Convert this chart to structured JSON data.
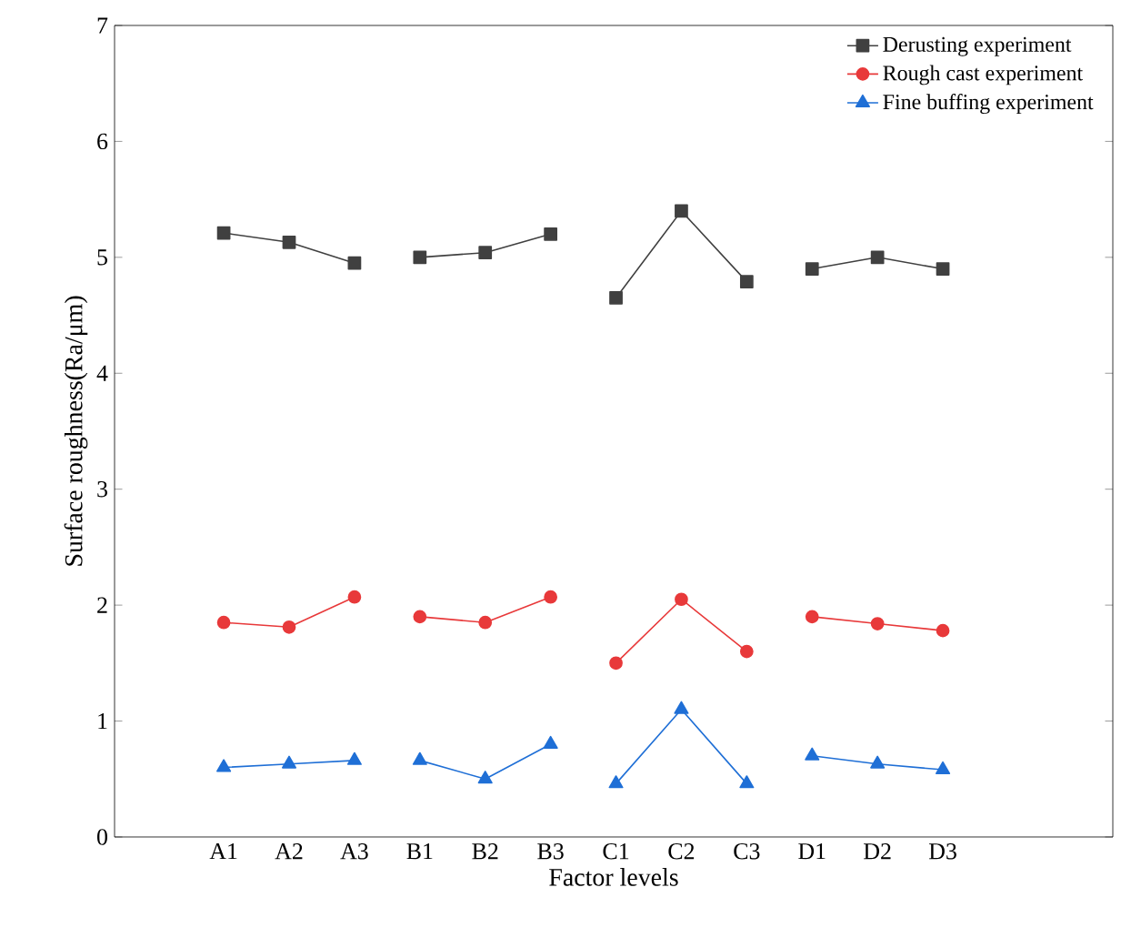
{
  "chart_data": {
    "type": "line",
    "xlabel": "Factor levels",
    "ylabel": "Surface roughness(Ra/μm)",
    "categories": [
      "A1",
      "A2",
      "A3",
      "B1",
      "B2",
      "B3",
      "C1",
      "C2",
      "C3",
      "D1",
      "D2",
      "D3"
    ],
    "ylim": [
      0,
      7
    ],
    "yticks": [
      0,
      1,
      2,
      3,
      4,
      5,
      6,
      7
    ],
    "legend": "top right",
    "grid": false,
    "series": [
      {
        "name": "Derusting experiment",
        "color": "#404040",
        "marker": "square",
        "values": [
          5.21,
          5.13,
          4.95,
          null,
          null,
          null,
          null,
          null,
          null,
          null,
          null,
          null
        ]
      },
      {
        "color": "#404040",
        "marker": "square",
        "values": [
          null,
          null,
          null,
          5.0,
          5.04,
          5.2,
          null,
          null,
          null,
          null,
          null,
          null
        ]
      },
      {
        "color": "#404040",
        "marker": "square",
        "values": [
          null,
          null,
          null,
          null,
          null,
          null,
          4.65,
          5.4,
          4.79,
          null,
          null,
          null
        ]
      },
      {
        "color": "#404040",
        "marker": "square",
        "values": [
          null,
          null,
          null,
          null,
          null,
          null,
          null,
          null,
          null,
          4.9,
          5.0,
          4.9
        ]
      },
      {
        "name": "Rough cast experiment",
        "color": "#e8393a",
        "marker": "circle",
        "values": [
          1.85,
          1.81,
          2.07,
          null,
          null,
          null,
          null,
          null,
          null,
          null,
          null,
          null
        ]
      },
      {
        "color": "#e8393a",
        "marker": "circle",
        "values": [
          null,
          null,
          null,
          1.9,
          1.85,
          2.07,
          null,
          null,
          null,
          null,
          null,
          null
        ]
      },
      {
        "color": "#e8393a",
        "marker": "circle",
        "values": [
          null,
          null,
          null,
          null,
          null,
          null,
          1.5,
          2.05,
          1.6,
          null,
          null,
          null
        ]
      },
      {
        "color": "#e8393a",
        "marker": "circle",
        "values": [
          null,
          null,
          null,
          null,
          null,
          null,
          null,
          null,
          null,
          1.9,
          1.84,
          1.78
        ]
      },
      {
        "name": "Fine buffing experiment",
        "color": "#1f6fd6",
        "marker": "triangle",
        "values": [
          0.6,
          0.63,
          0.66,
          null,
          null,
          null,
          null,
          null,
          null,
          null,
          null,
          null
        ]
      },
      {
        "color": "#1f6fd6",
        "marker": "triangle",
        "values": [
          null,
          null,
          null,
          0.66,
          0.5,
          0.8,
          null,
          null,
          null,
          null,
          null,
          null
        ]
      },
      {
        "color": "#1f6fd6",
        "marker": "triangle",
        "values": [
          null,
          null,
          null,
          null,
          null,
          null,
          0.46,
          1.1,
          0.46,
          null,
          null,
          null
        ]
      },
      {
        "color": "#1f6fd6",
        "marker": "triangle",
        "values": [
          null,
          null,
          null,
          null,
          null,
          null,
          null,
          null,
          null,
          0.7,
          0.63,
          0.58
        ]
      }
    ]
  }
}
